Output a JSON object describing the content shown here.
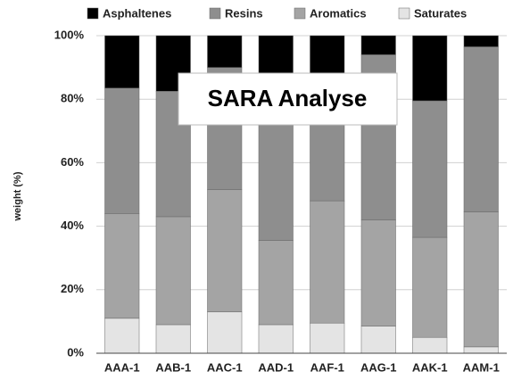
{
  "chart_data": {
    "type": "stacked_bar",
    "title": "SARA Analyse",
    "y_label": "weight (%)",
    "categories": [
      "AAA-1",
      "AAB-1",
      "AAC-1",
      "AAD-1",
      "AAF-1",
      "AAG-1",
      "AAK-1",
      "AAM-1"
    ],
    "series": [
      {
        "name": "Saturates",
        "color": "#e4e4e4",
        "values": [
          11,
          9,
          13,
          9,
          9.5,
          8.5,
          5,
          2
        ]
      },
      {
        "name": "Aromatics",
        "color": "#a4a4a4",
        "values": [
          33,
          34,
          38.5,
          26.5,
          38.5,
          33.5,
          31.5,
          42.5
        ]
      },
      {
        "name": "Resins",
        "color": "#8e8e8e",
        "values": [
          39.5,
          39.5,
          38.5,
          46.5,
          34,
          52,
          43,
          52
        ]
      },
      {
        "name": "Asphaltenes",
        "color": "#000000",
        "values": [
          16.5,
          17.5,
          10,
          18,
          18,
          6,
          20.5,
          3.5
        ]
      }
    ],
    "ylim": [
      0,
      100
    ],
    "yticks": [
      {
        "value": 0,
        "label": "0%"
      },
      {
        "value": 20,
        "label": "20%"
      },
      {
        "value": 40,
        "label": "40%"
      },
      {
        "value": 60,
        "label": "60%"
      },
      {
        "value": 80,
        "label": "80%"
      },
      {
        "value": 100,
        "label": "100%"
      }
    ],
    "grid": true,
    "legend": "top"
  }
}
